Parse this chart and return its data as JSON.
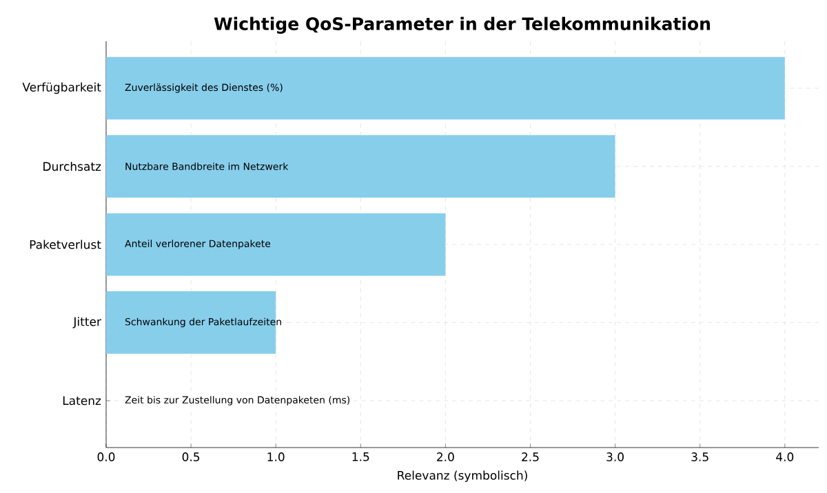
{
  "chart_data": {
    "type": "bar",
    "orientation": "horizontal",
    "title": "Wichtige QoS-Parameter in der Telekommunikation",
    "xlabel": "Relevanz (symbolisch)",
    "categories": [
      "Verfügbarkeit",
      "Durchsatz",
      "Paketverlust",
      "Jitter",
      "Latenz"
    ],
    "values": [
      4,
      3,
      2,
      1,
      0
    ],
    "color": "#87ceeb",
    "xlim": [
      0,
      4.2
    ],
    "xticks": [
      {
        "value": 0,
        "label": "0.0"
      },
      0.5,
      {
        "value": 1,
        "label": "1.0"
      },
      1.5,
      {
        "value": 2,
        "label": "2.0"
      },
      2.5,
      {
        "value": 3,
        "label": "3.0"
      },
      3.5,
      {
        "value": 4,
        "label": "4.0"
      }
    ],
    "grid": true,
    "annotations": [
      "Zuverlässigkeit des Dienstes (%)",
      "Nutzbare Bandbreite im Netzwerk",
      "Anteil verlorener Datenpakete",
      "Schwankung der Paketlaufzeiten",
      "Zeit bis zur Zustellung von Datenpaketen (ms)"
    ]
  }
}
